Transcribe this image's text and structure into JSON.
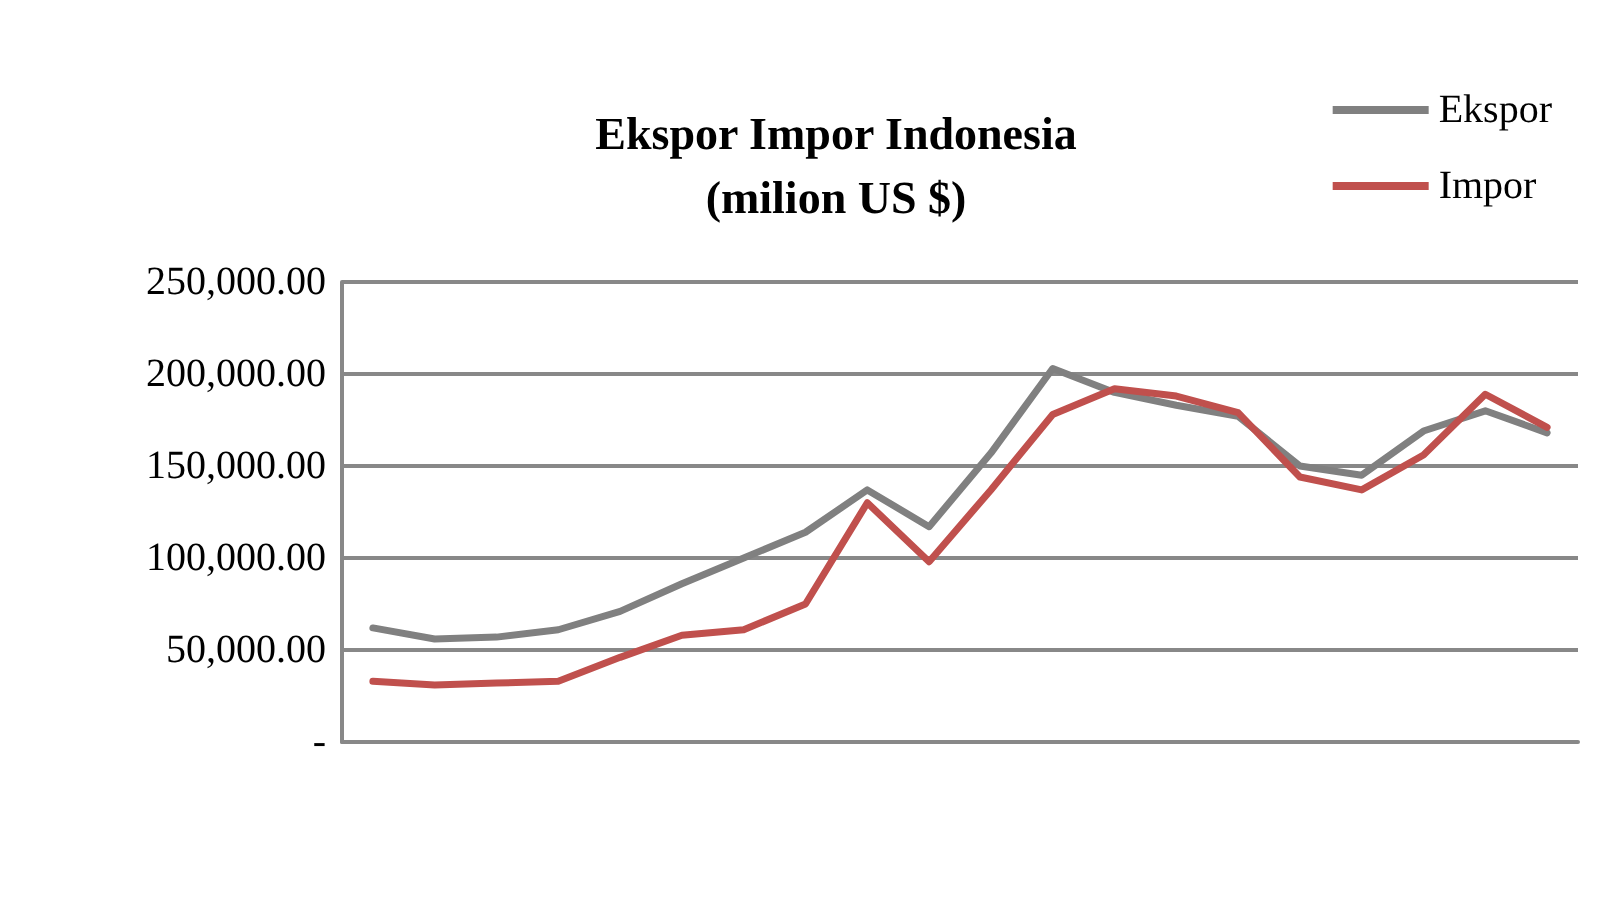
{
  "chart_data": {
    "type": "line",
    "title": "Ekspor Impor Indonesia\n(milion US $)",
    "categories": [
      null,
      null,
      null,
      null,
      null,
      null,
      null,
      null,
      null,
      null,
      null,
      null,
      null,
      null,
      null,
      null,
      null,
      null,
      null,
      null
    ],
    "series": [
      {
        "name": "Ekspor",
        "color": "#808080",
        "values": [
          62000,
          56000,
          57000,
          61000,
          71000,
          86000,
          100000,
          114000,
          137000,
          117000,
          157000,
          203000,
          190000,
          183000,
          177000,
          150000,
          145000,
          169000,
          180000,
          168000
        ]
      },
      {
        "name": "Impor",
        "color": "#c0504d",
        "values": [
          33000,
          31000,
          32000,
          33000,
          46000,
          58000,
          61000,
          75000,
          130000,
          98000,
          137000,
          178000,
          192000,
          188000,
          179000,
          144000,
          137000,
          156000,
          189000,
          171000
        ]
      }
    ],
    "ylim": [
      0,
      250000
    ],
    "yticks": [
      {
        "value": 0,
        "label": "-"
      },
      {
        "value": 50000,
        "label": "50,000.00"
      },
      {
        "value": 100000,
        "label": "100,000.00"
      },
      {
        "value": 150000,
        "label": "150,000.00"
      },
      {
        "value": 200000,
        "label": "200,000.00"
      },
      {
        "value": 250000,
        "label": "250,000.00"
      }
    ],
    "grid": "y",
    "legend": "top right",
    "line_style": "solid",
    "marker": "none"
  }
}
